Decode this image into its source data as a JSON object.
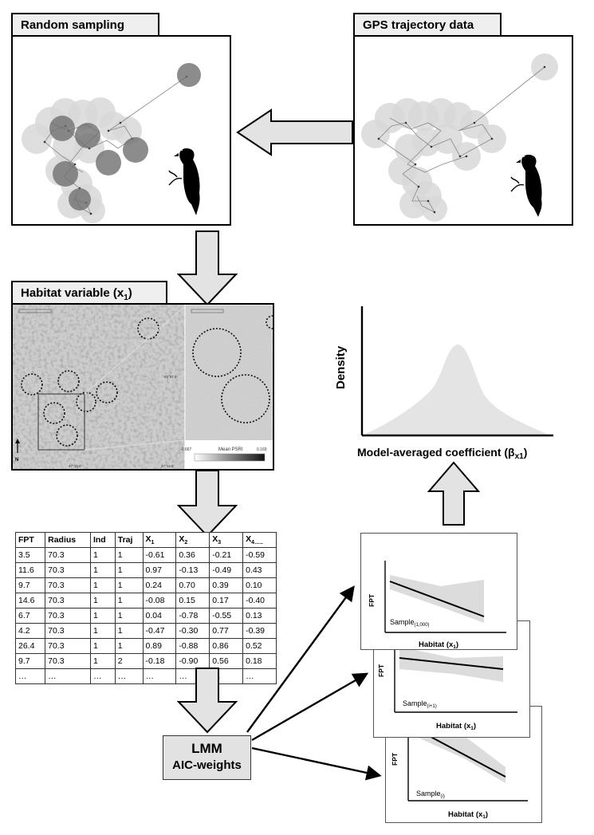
{
  "panels": {
    "random_sampling": {
      "title": "Random sampling"
    },
    "gps_trajectory": {
      "title": "GPS trajectory data"
    },
    "habitat_variable": {
      "title": "Habitat variable (x",
      "title_sub": "1",
      "title_end": ")"
    }
  },
  "map": {
    "scale_min": "-0.667",
    "scale_label": "Mean PSRI",
    "scale_max": "0.169",
    "north": "N",
    "coord_1": "63°57.8'",
    "coord_2": "47°16.4'",
    "coord_3": "47°14.8'"
  },
  "density_plot": {
    "ylabel": "Density",
    "xlabel_main": "Model-averaged coefficient (β",
    "xlabel_sub": "x1",
    "xlabel_end": ")"
  },
  "table": {
    "headers": [
      {
        "main": "FPT",
        "sub": ""
      },
      {
        "main": "Radius",
        "sub": ""
      },
      {
        "main": "Ind",
        "sub": ""
      },
      {
        "main": "Traj",
        "sub": ""
      },
      {
        "main": "X",
        "sub": "1"
      },
      {
        "main": "X",
        "sub": "2"
      },
      {
        "main": "X",
        "sub": "3"
      },
      {
        "main": "X",
        "sub": "4….."
      }
    ],
    "rows": [
      [
        "3.5",
        "70.3",
        "1",
        "1",
        "-0.61",
        "0.36",
        "-0.21",
        "-0.59"
      ],
      [
        "11.6",
        "70.3",
        "1",
        "1",
        "0.97",
        "-0.13",
        "-0.49",
        "0.43"
      ],
      [
        "9.7",
        "70.3",
        "1",
        "1",
        "0.24",
        "0.70",
        "0.39",
        "0.10"
      ],
      [
        "14.6",
        "70.3",
        "1",
        "1",
        "-0.08",
        "0.15",
        "0.17",
        "-0.40"
      ],
      [
        "6.7",
        "70.3",
        "1",
        "1",
        "0.04",
        "-0.78",
        "-0.55",
        "0.13"
      ],
      [
        "4.2",
        "70.3",
        "1",
        "1",
        "-0.47",
        "-0.30",
        "0.77",
        "-0.39"
      ],
      [
        "26.4",
        "70.3",
        "1",
        "1",
        "0.89",
        "-0.88",
        "0.86",
        "0.52"
      ],
      [
        "9.7",
        "70.3",
        "1",
        "2",
        "-0.18",
        "-0.90",
        "0.56",
        "0.18"
      ],
      [
        "…",
        "…",
        "…",
        "…",
        "…",
        "…",
        "…",
        "…"
      ]
    ]
  },
  "lmm": {
    "line1": "LMM",
    "line2": "AIC-weights"
  },
  "sample_cards": [
    {
      "ylabel": "FPT",
      "xlabel": "Habitat (x",
      "xlabel_sub": "1",
      "xlabel_end": ")",
      "sample": "Sample",
      "sample_sub": "(1,000)"
    },
    {
      "ylabel": "FPT",
      "xlabel": "Habitat (x",
      "xlabel_sub": "1",
      "xlabel_end": ")",
      "sample": "Sample",
      "sample_sub": "(i+1)"
    },
    {
      "ylabel": "FPT",
      "xlabel": "Habitat (x",
      "xlabel_sub": "1",
      "xlabel_end": ")",
      "sample": "Sample",
      "sample_sub": "(i)"
    }
  ],
  "colors": {
    "arrow_fill": "#e3e3e3",
    "circle_light": "#d6d6d6",
    "circle_dark": "#7a7a7a",
    "density_fill": "#e4e4e4"
  }
}
